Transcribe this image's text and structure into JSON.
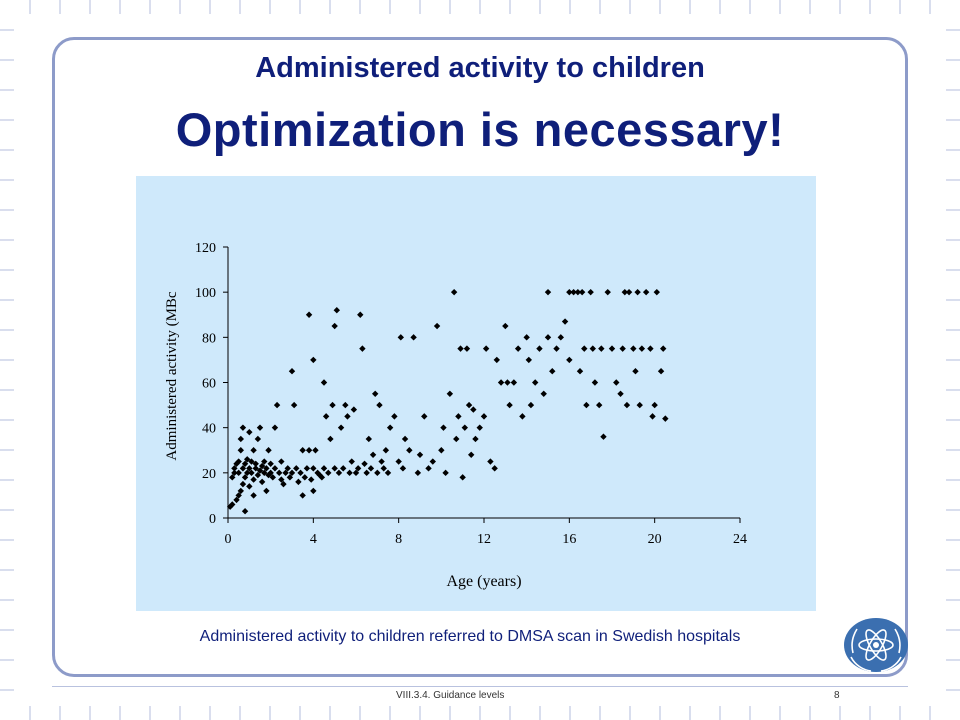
{
  "slide": {
    "title_line1": "Administered activity to children",
    "title_line2": "Optimization is necessary!",
    "caption": "Administered activity to children referred to DMSA scan in Swedish hospitals",
    "footer": "VIII.3.4. Guidance levels",
    "page_number": "8",
    "logo_icon": "iaea-atom-logo-icon"
  },
  "colors": {
    "title": "#0f1f7a",
    "chart_background": "#cfe9fb",
    "frame": "#8d9bc9",
    "points": "#000000",
    "logo": "#3b6fb0"
  },
  "chart_data": {
    "type": "scatter",
    "xlabel": "Age (years)",
    "ylabel": "Administered activity (MBq)",
    "ylabel_visible": "Administered activity (MBc",
    "xlim": [
      0,
      24
    ],
    "ylim": [
      0,
      120
    ],
    "xticks": [
      "0",
      "4",
      "8",
      "12",
      "16",
      "20",
      "24"
    ],
    "yticks": [
      "0",
      "20",
      "40",
      "60",
      "80",
      "100",
      "120"
    ],
    "grid": false,
    "legend": "none",
    "points": [
      [
        0.1,
        5
      ],
      [
        0.2,
        6
      ],
      [
        0.2,
        18
      ],
      [
        0.3,
        20
      ],
      [
        0.3,
        22
      ],
      [
        0.4,
        24
      ],
      [
        0.4,
        8
      ],
      [
        0.5,
        10
      ],
      [
        0.5,
        20
      ],
      [
        0.5,
        25
      ],
      [
        0.6,
        12
      ],
      [
        0.6,
        30
      ],
      [
        0.6,
        35
      ],
      [
        0.7,
        15
      ],
      [
        0.7,
        22
      ],
      [
        0.7,
        40
      ],
      [
        0.8,
        3
      ],
      [
        0.8,
        18
      ],
      [
        0.8,
        24
      ],
      [
        0.9,
        20
      ],
      [
        0.9,
        26
      ],
      [
        1.0,
        14
      ],
      [
        1.0,
        22
      ],
      [
        1.0,
        38
      ],
      [
        1.1,
        20
      ],
      [
        1.1,
        25
      ],
      [
        1.2,
        10
      ],
      [
        1.2,
        17
      ],
      [
        1.2,
        30
      ],
      [
        1.3,
        22
      ],
      [
        1.3,
        24
      ],
      [
        1.4,
        19
      ],
      [
        1.4,
        35
      ],
      [
        1.5,
        21
      ],
      [
        1.5,
        40
      ],
      [
        1.6,
        16
      ],
      [
        1.6,
        23
      ],
      [
        1.7,
        20
      ],
      [
        1.7,
        25
      ],
      [
        1.8,
        12
      ],
      [
        1.8,
        22
      ],
      [
        1.9,
        19
      ],
      [
        1.9,
        30
      ],
      [
        2.0,
        20
      ],
      [
        2.0,
        24
      ],
      [
        2.1,
        18
      ],
      [
        2.2,
        40
      ],
      [
        2.2,
        22
      ],
      [
        2.3,
        50
      ],
      [
        2.4,
        20
      ],
      [
        2.5,
        17
      ],
      [
        2.5,
        25
      ],
      [
        2.6,
        15
      ],
      [
        2.7,
        20
      ],
      [
        2.8,
        22
      ],
      [
        2.9,
        18
      ],
      [
        3.0,
        65
      ],
      [
        3.0,
        20
      ],
      [
        3.1,
        50
      ],
      [
        3.2,
        22
      ],
      [
        3.3,
        16
      ],
      [
        3.4,
        20
      ],
      [
        3.5,
        10
      ],
      [
        3.5,
        30
      ],
      [
        3.6,
        18
      ],
      [
        3.7,
        22
      ],
      [
        3.8,
        90
      ],
      [
        3.8,
        30
      ],
      [
        3.9,
        17
      ],
      [
        4.0,
        70
      ],
      [
        4.0,
        22
      ],
      [
        4.0,
        12
      ],
      [
        4.1,
        30
      ],
      [
        4.2,
        20
      ],
      [
        4.3,
        19
      ],
      [
        4.4,
        18
      ],
      [
        4.5,
        60
      ],
      [
        4.5,
        22
      ],
      [
        4.6,
        45
      ],
      [
        4.7,
        20
      ],
      [
        4.8,
        35
      ],
      [
        4.9,
        50
      ],
      [
        5.0,
        85
      ],
      [
        5.0,
        22
      ],
      [
        5.1,
        92
      ],
      [
        5.2,
        20
      ],
      [
        5.3,
        40
      ],
      [
        5.4,
        22
      ],
      [
        5.5,
        50
      ],
      [
        5.6,
        45
      ],
      [
        5.7,
        20
      ],
      [
        5.8,
        25
      ],
      [
        5.9,
        48
      ],
      [
        6.0,
        20
      ],
      [
        6.1,
        22
      ],
      [
        6.2,
        90
      ],
      [
        6.3,
        75
      ],
      [
        6.4,
        24
      ],
      [
        6.5,
        20
      ],
      [
        6.6,
        35
      ],
      [
        6.7,
        22
      ],
      [
        6.8,
        28
      ],
      [
        6.9,
        55
      ],
      [
        7.0,
        20
      ],
      [
        7.1,
        50
      ],
      [
        7.2,
        25
      ],
      [
        7.3,
        22
      ],
      [
        7.4,
        30
      ],
      [
        7.5,
        20
      ],
      [
        7.6,
        40
      ],
      [
        7.8,
        45
      ],
      [
        8.0,
        25
      ],
      [
        8.1,
        80
      ],
      [
        8.2,
        22
      ],
      [
        8.3,
        35
      ],
      [
        8.5,
        30
      ],
      [
        8.7,
        80
      ],
      [
        8.9,
        20
      ],
      [
        9.0,
        28
      ],
      [
        9.2,
        45
      ],
      [
        9.4,
        22
      ],
      [
        9.6,
        25
      ],
      [
        9.8,
        85
      ],
      [
        10.0,
        30
      ],
      [
        10.1,
        40
      ],
      [
        10.2,
        20
      ],
      [
        10.4,
        55
      ],
      [
        10.6,
        100
      ],
      [
        10.7,
        35
      ],
      [
        10.8,
        45
      ],
      [
        10.9,
        75
      ],
      [
        11.0,
        18
      ],
      [
        11.1,
        40
      ],
      [
        11.2,
        75
      ],
      [
        11.3,
        50
      ],
      [
        11.4,
        28
      ],
      [
        11.5,
        48
      ],
      [
        11.6,
        35
      ],
      [
        11.8,
        40
      ],
      [
        12.0,
        45
      ],
      [
        12.1,
        75
      ],
      [
        12.3,
        25
      ],
      [
        12.5,
        22
      ],
      [
        12.6,
        70
      ],
      [
        12.8,
        60
      ],
      [
        13.0,
        85
      ],
      [
        13.1,
        60
      ],
      [
        13.2,
        50
      ],
      [
        13.4,
        60
      ],
      [
        13.6,
        75
      ],
      [
        13.8,
        45
      ],
      [
        14.0,
        80
      ],
      [
        14.1,
        70
      ],
      [
        14.2,
        50
      ],
      [
        14.4,
        60
      ],
      [
        14.6,
        75
      ],
      [
        14.8,
        55
      ],
      [
        15.0,
        100
      ],
      [
        15.0,
        80
      ],
      [
        15.2,
        65
      ],
      [
        15.4,
        75
      ],
      [
        15.6,
        80
      ],
      [
        15.8,
        87
      ],
      [
        16.0,
        100
      ],
      [
        16.0,
        70
      ],
      [
        16.2,
        100
      ],
      [
        16.4,
        100
      ],
      [
        16.5,
        65
      ],
      [
        16.6,
        100
      ],
      [
        16.7,
        75
      ],
      [
        16.8,
        50
      ],
      [
        17.0,
        100
      ],
      [
        17.1,
        75
      ],
      [
        17.2,
        60
      ],
      [
        17.4,
        50
      ],
      [
        17.5,
        75
      ],
      [
        17.6,
        36
      ],
      [
        17.8,
        100
      ],
      [
        18.0,
        75
      ],
      [
        18.2,
        60
      ],
      [
        18.4,
        55
      ],
      [
        18.5,
        75
      ],
      [
        18.6,
        100
      ],
      [
        18.7,
        50
      ],
      [
        18.8,
        100
      ],
      [
        19.0,
        75
      ],
      [
        19.1,
        65
      ],
      [
        19.2,
        100
      ],
      [
        19.3,
        50
      ],
      [
        19.4,
        75
      ],
      [
        19.6,
        100
      ],
      [
        19.8,
        75
      ],
      [
        19.9,
        45
      ],
      [
        20.0,
        50
      ],
      [
        20.1,
        100
      ],
      [
        20.3,
        65
      ],
      [
        20.4,
        75
      ],
      [
        20.5,
        44
      ]
    ]
  }
}
